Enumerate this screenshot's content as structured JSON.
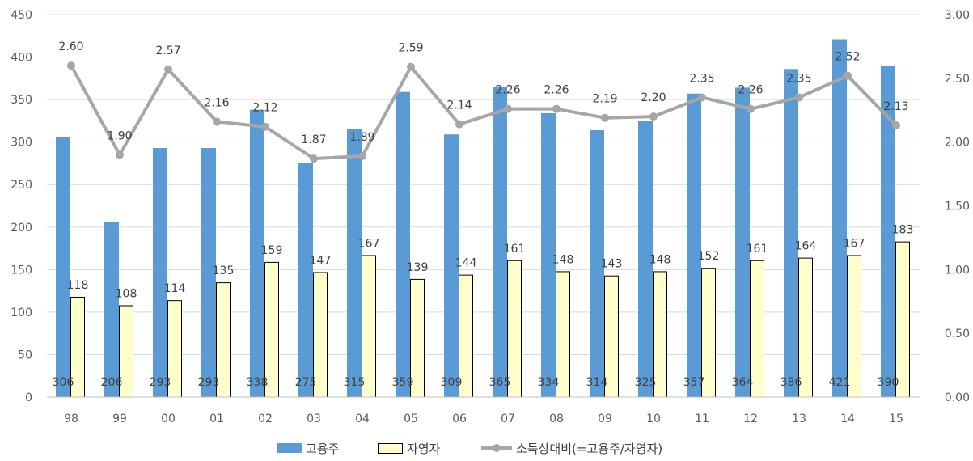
{
  "chart_data": {
    "type": "bar",
    "categories": [
      "98",
      "99",
      "00",
      "01",
      "02",
      "03",
      "04",
      "05",
      "06",
      "07",
      "08",
      "09",
      "10",
      "11",
      "12",
      "13",
      "14",
      "15"
    ],
    "series": [
      {
        "name": "고용주",
        "type": "bar",
        "axis": "left",
        "color": "#5b9bd5",
        "values": [
          306,
          206,
          293,
          293,
          338,
          275,
          315,
          359,
          309,
          365,
          334,
          314,
          325,
          357,
          364,
          386,
          421,
          390
        ]
      },
      {
        "name": "자영자",
        "type": "bar",
        "axis": "left",
        "color": "#ffffcc",
        "values": [
          118,
          108,
          114,
          135,
          159,
          147,
          167,
          139,
          144,
          161,
          148,
          143,
          148,
          152,
          161,
          164,
          167,
          183
        ]
      },
      {
        "name": "소득상대비(=고용주/자영자)",
        "type": "line",
        "axis": "right",
        "color": "#a6a6a6",
        "values": [
          2.6,
          1.9,
          2.57,
          2.16,
          2.12,
          1.87,
          1.89,
          2.59,
          2.14,
          2.26,
          2.26,
          2.19,
          2.2,
          2.35,
          2.26,
          2.35,
          2.52,
          2.13
        ],
        "labels": [
          "2.60",
          "1.90",
          "2.57",
          "2.16",
          "2.12",
          "1.87",
          "1.89",
          "2.59",
          "2.14",
          "2.26",
          "2.26",
          "2.19",
          "2.20",
          "2.35",
          "2.26",
          "2.35",
          "2.52",
          "2.13"
        ]
      }
    ],
    "y_left": {
      "ylim": [
        0,
        450
      ],
      "ticks": [
        "0",
        "50",
        "100",
        "150",
        "200",
        "250",
        "300",
        "350",
        "400",
        "450"
      ]
    },
    "y_right": {
      "ylim": [
        0,
        3
      ],
      "ticks": [
        "0.00",
        "0.50",
        "1.00",
        "1.50",
        "2.00",
        "2.50",
        "3.00"
      ]
    },
    "grid": true,
    "legend_position": "bottom"
  }
}
